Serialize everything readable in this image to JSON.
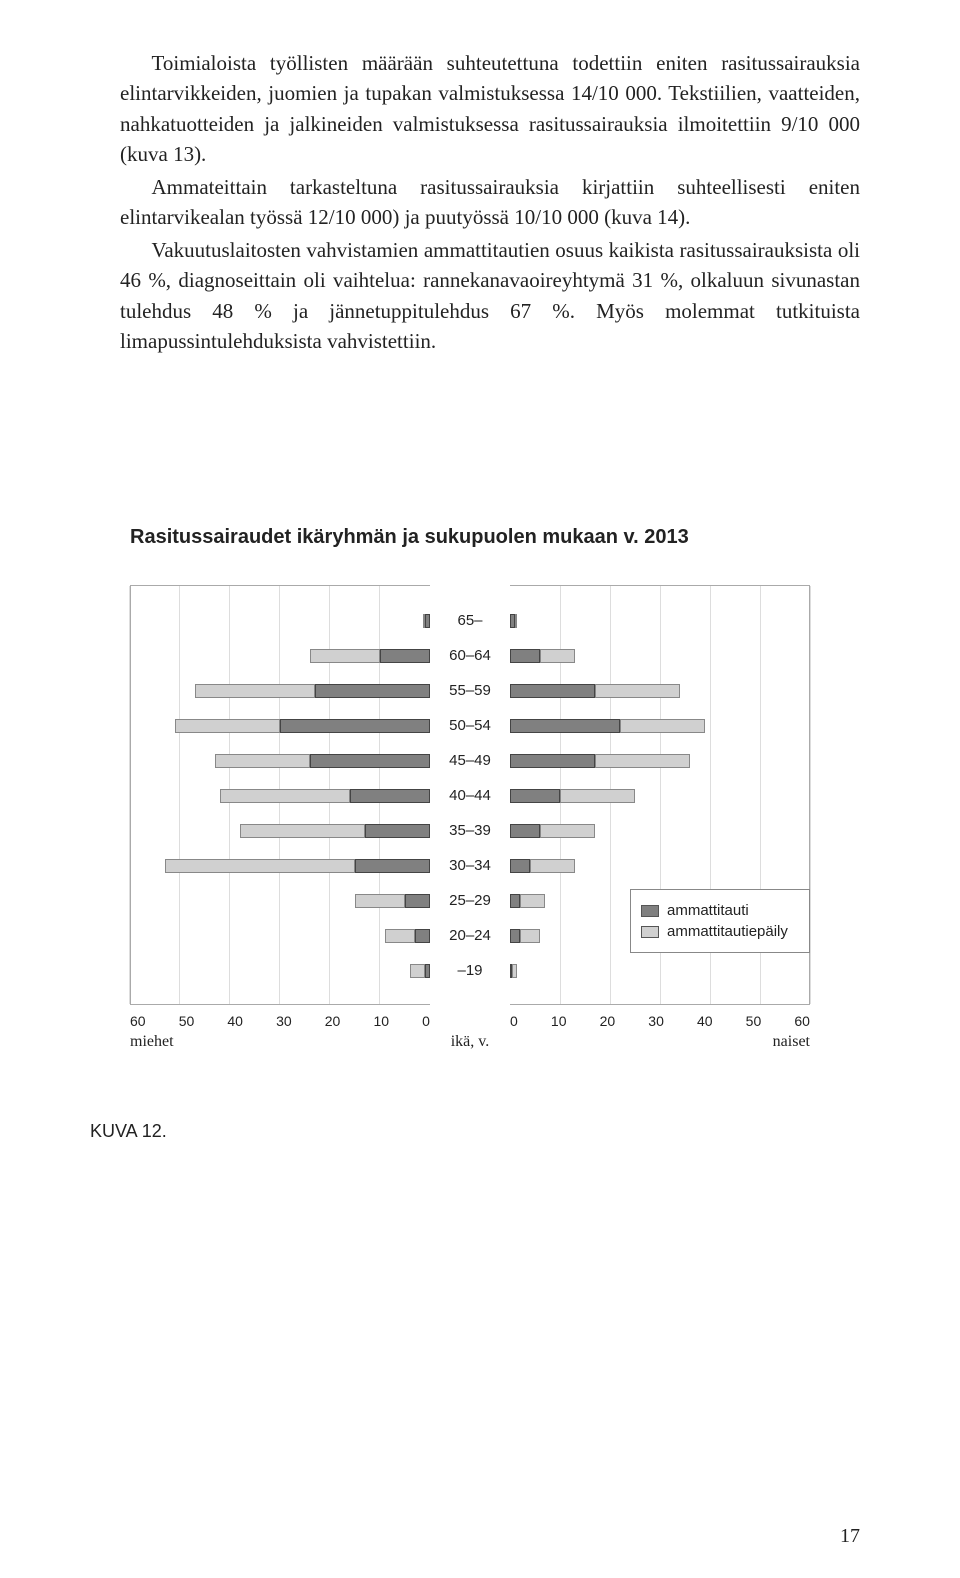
{
  "paragraphs": {
    "p1": "Toimialoista työllisten määrään suhteutettuna todettiin eniten rasitussairauksia elintarvikkeiden, juomien ja tupakan valmistuksessa 14/10 000. Tekstiilien, vaatteiden, nahkatuotteiden ja jalkineiden valmistuksessa rasitussairauksia ilmoitettiin 9/10 000 (kuva 13).",
    "p2": "Ammateittain tarkasteltuna rasitussairauksia kirjattiin suhteellisesti eniten elintarvikealan työssä 12/10 000) ja puutyössä 10/10 000 (kuva 14).",
    "p3": "Vakuutuslaitosten vahvistamien ammattitautien osuus kaikista rasitussairauksista oli 46 %, diagnoseittain oli vaihtelua: rannekanavaoireyhtymä 31 %, olkaluun sivunastan tulehdus 48 % ja jännetuppitulehdus 67 %. Myös molemmat tutkituista limapussintulehduksista vahvistettiin."
  },
  "chart": {
    "title": "Rasitussairaudet ikäryhmän ja sukupuolen mukaan v. 2013",
    "type": "population-pyramid",
    "xmax": 60,
    "xticks": [
      0,
      10,
      20,
      30,
      40,
      50,
      60
    ],
    "left_label": "miehet",
    "right_label": "naiset",
    "center_label": "ikä, v.",
    "legend": {
      "at": "ammattitauti",
      "ep": "ammattitautiepäily"
    },
    "colors": {
      "at": "#808080",
      "ep": "#d0d0d0",
      "grid": "#dddddd",
      "border": "#aaaaaa",
      "text": "#222222"
    },
    "age_groups": [
      "65–",
      "60–64",
      "55–59",
      "50–54",
      "45–49",
      "40–44",
      "35–39",
      "30–34",
      "25–29",
      "20–24",
      "–19"
    ],
    "men": {
      "at": [
        1,
        10,
        23,
        30,
        24,
        16,
        13,
        15,
        5,
        3,
        1
      ],
      "ep": [
        0,
        14,
        24,
        21,
        19,
        26,
        25,
        38,
        10,
        6,
        3
      ]
    },
    "women": {
      "at": [
        1,
        6,
        17,
        22,
        17,
        10,
        6,
        4,
        2,
        2,
        0
      ],
      "ep": [
        0,
        7,
        17,
        17,
        19,
        15,
        11,
        9,
        5,
        4,
        1
      ]
    }
  },
  "caption": "KUVA 12.",
  "page_number": "17"
}
